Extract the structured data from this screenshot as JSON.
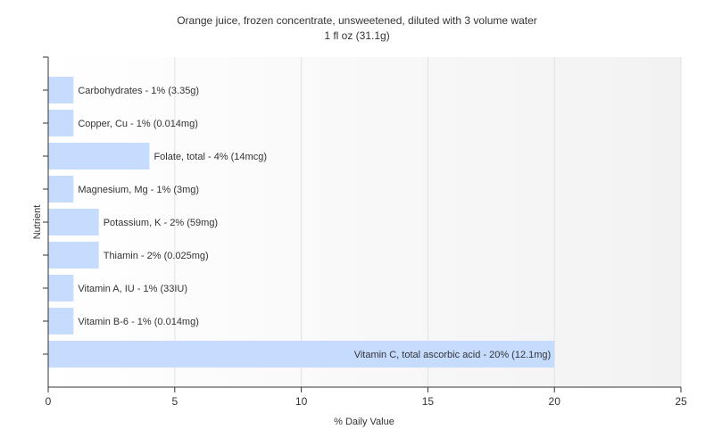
{
  "chart_data": {
    "type": "bar",
    "orientation": "horizontal",
    "title": "Orange juice, frozen concentrate, unsweetened, diluted with 3 volume water",
    "subtitle": "1 fl oz (31.1g)",
    "xlabel": "% Daily Value",
    "ylabel": "Nutrient",
    "xlim": [
      0,
      25
    ],
    "xticks": [
      0,
      5,
      10,
      15,
      20,
      25
    ],
    "grid": true,
    "bar_color": "#c6dcff",
    "categories": [
      "Carbohydrates",
      "Copper, Cu",
      "Folate, total",
      "Magnesium, Mg",
      "Potassium, K",
      "Thiamin",
      "Vitamin A, IU",
      "Vitamin B-6",
      "Vitamin C, total ascorbic acid"
    ],
    "values": [
      1,
      1,
      4,
      1,
      2,
      2,
      1,
      1,
      20
    ],
    "data_labels": [
      "Carbohydrates - 1% (3.35g)",
      "Copper, Cu - 1% (0.014mg)",
      "Folate, total - 4% (14mcg)",
      "Magnesium, Mg - 1% (3mg)",
      "Potassium, K - 2% (59mg)",
      "Thiamin - 2% (0.025mg)",
      "Vitamin A, IU - 1% (33IU)",
      "Vitamin B-6 - 1% (0.014mg)",
      "Vitamin C, total ascorbic acid - 20% (12.1mg)"
    ]
  }
}
